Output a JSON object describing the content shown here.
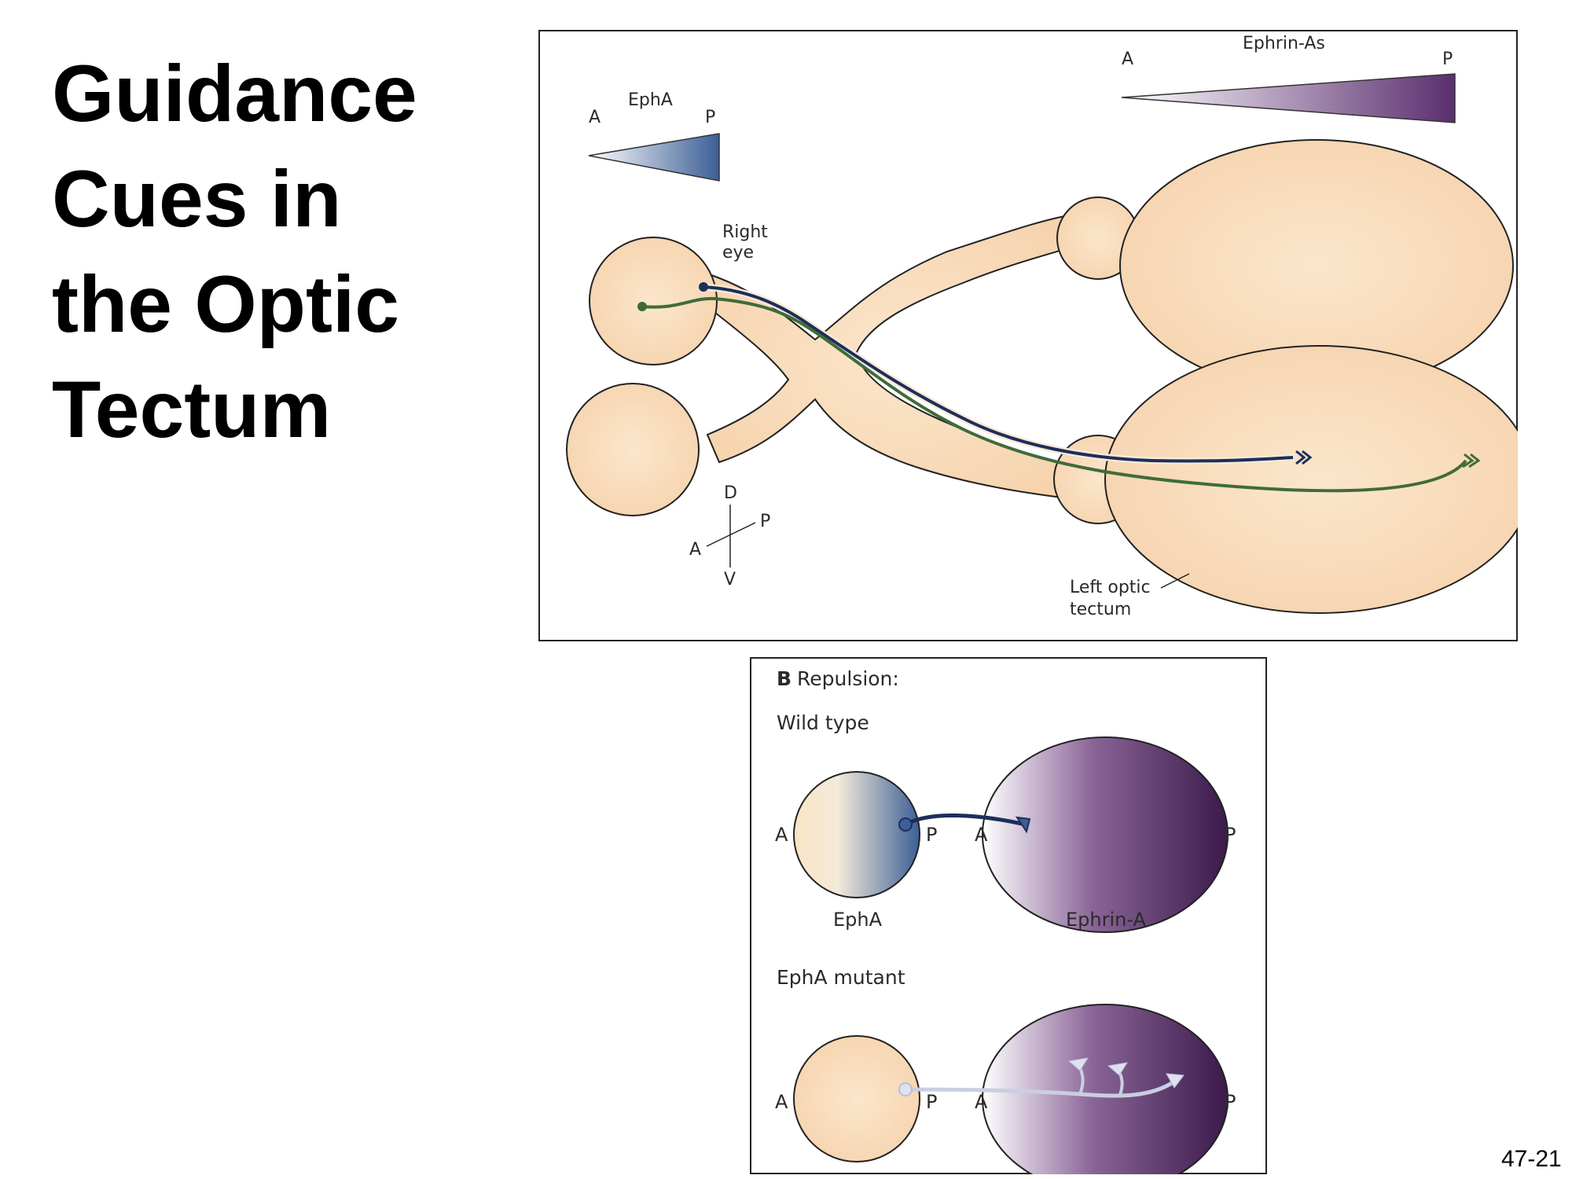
{
  "slide": {
    "title_lines": [
      "Guidance",
      "Cues in",
      "the Optic",
      "Tectum"
    ],
    "number": "47-21"
  },
  "panel_a": {
    "epha_gradient": {
      "label": "EphA",
      "left": "A",
      "right": "P"
    },
    "ephrin_gradient": {
      "label": "Ephrin-As",
      "left": "A",
      "right": "P"
    },
    "right_eye_label": [
      "Right",
      "eye"
    ],
    "tectum_label": [
      "Left optic",
      "tectum"
    ],
    "axes": {
      "up": "D",
      "down": "V",
      "left": "A",
      "right": "P"
    },
    "colors": {
      "tissue": "#f9dcbb",
      "epha_blue": "#3c5f96",
      "ephrin_purple": "#5a2e6e",
      "axon_dark": "#1c2e5a",
      "axon_green": "#3f6b3a"
    }
  },
  "panel_b": {
    "heading_letter": "B",
    "heading": "Repulsion:",
    "wild_type": {
      "label": "Wild type",
      "eye_left": "A",
      "eye_right": "P",
      "tectum_left": "A",
      "tectum_right": "P",
      "eye_caption": "EphA",
      "tectum_caption": "Ephrin-A"
    },
    "mutant": {
      "label": "EphA mutant",
      "eye_left": "A",
      "eye_right": "P",
      "tectum_left": "A",
      "tectum_right": "P"
    }
  }
}
